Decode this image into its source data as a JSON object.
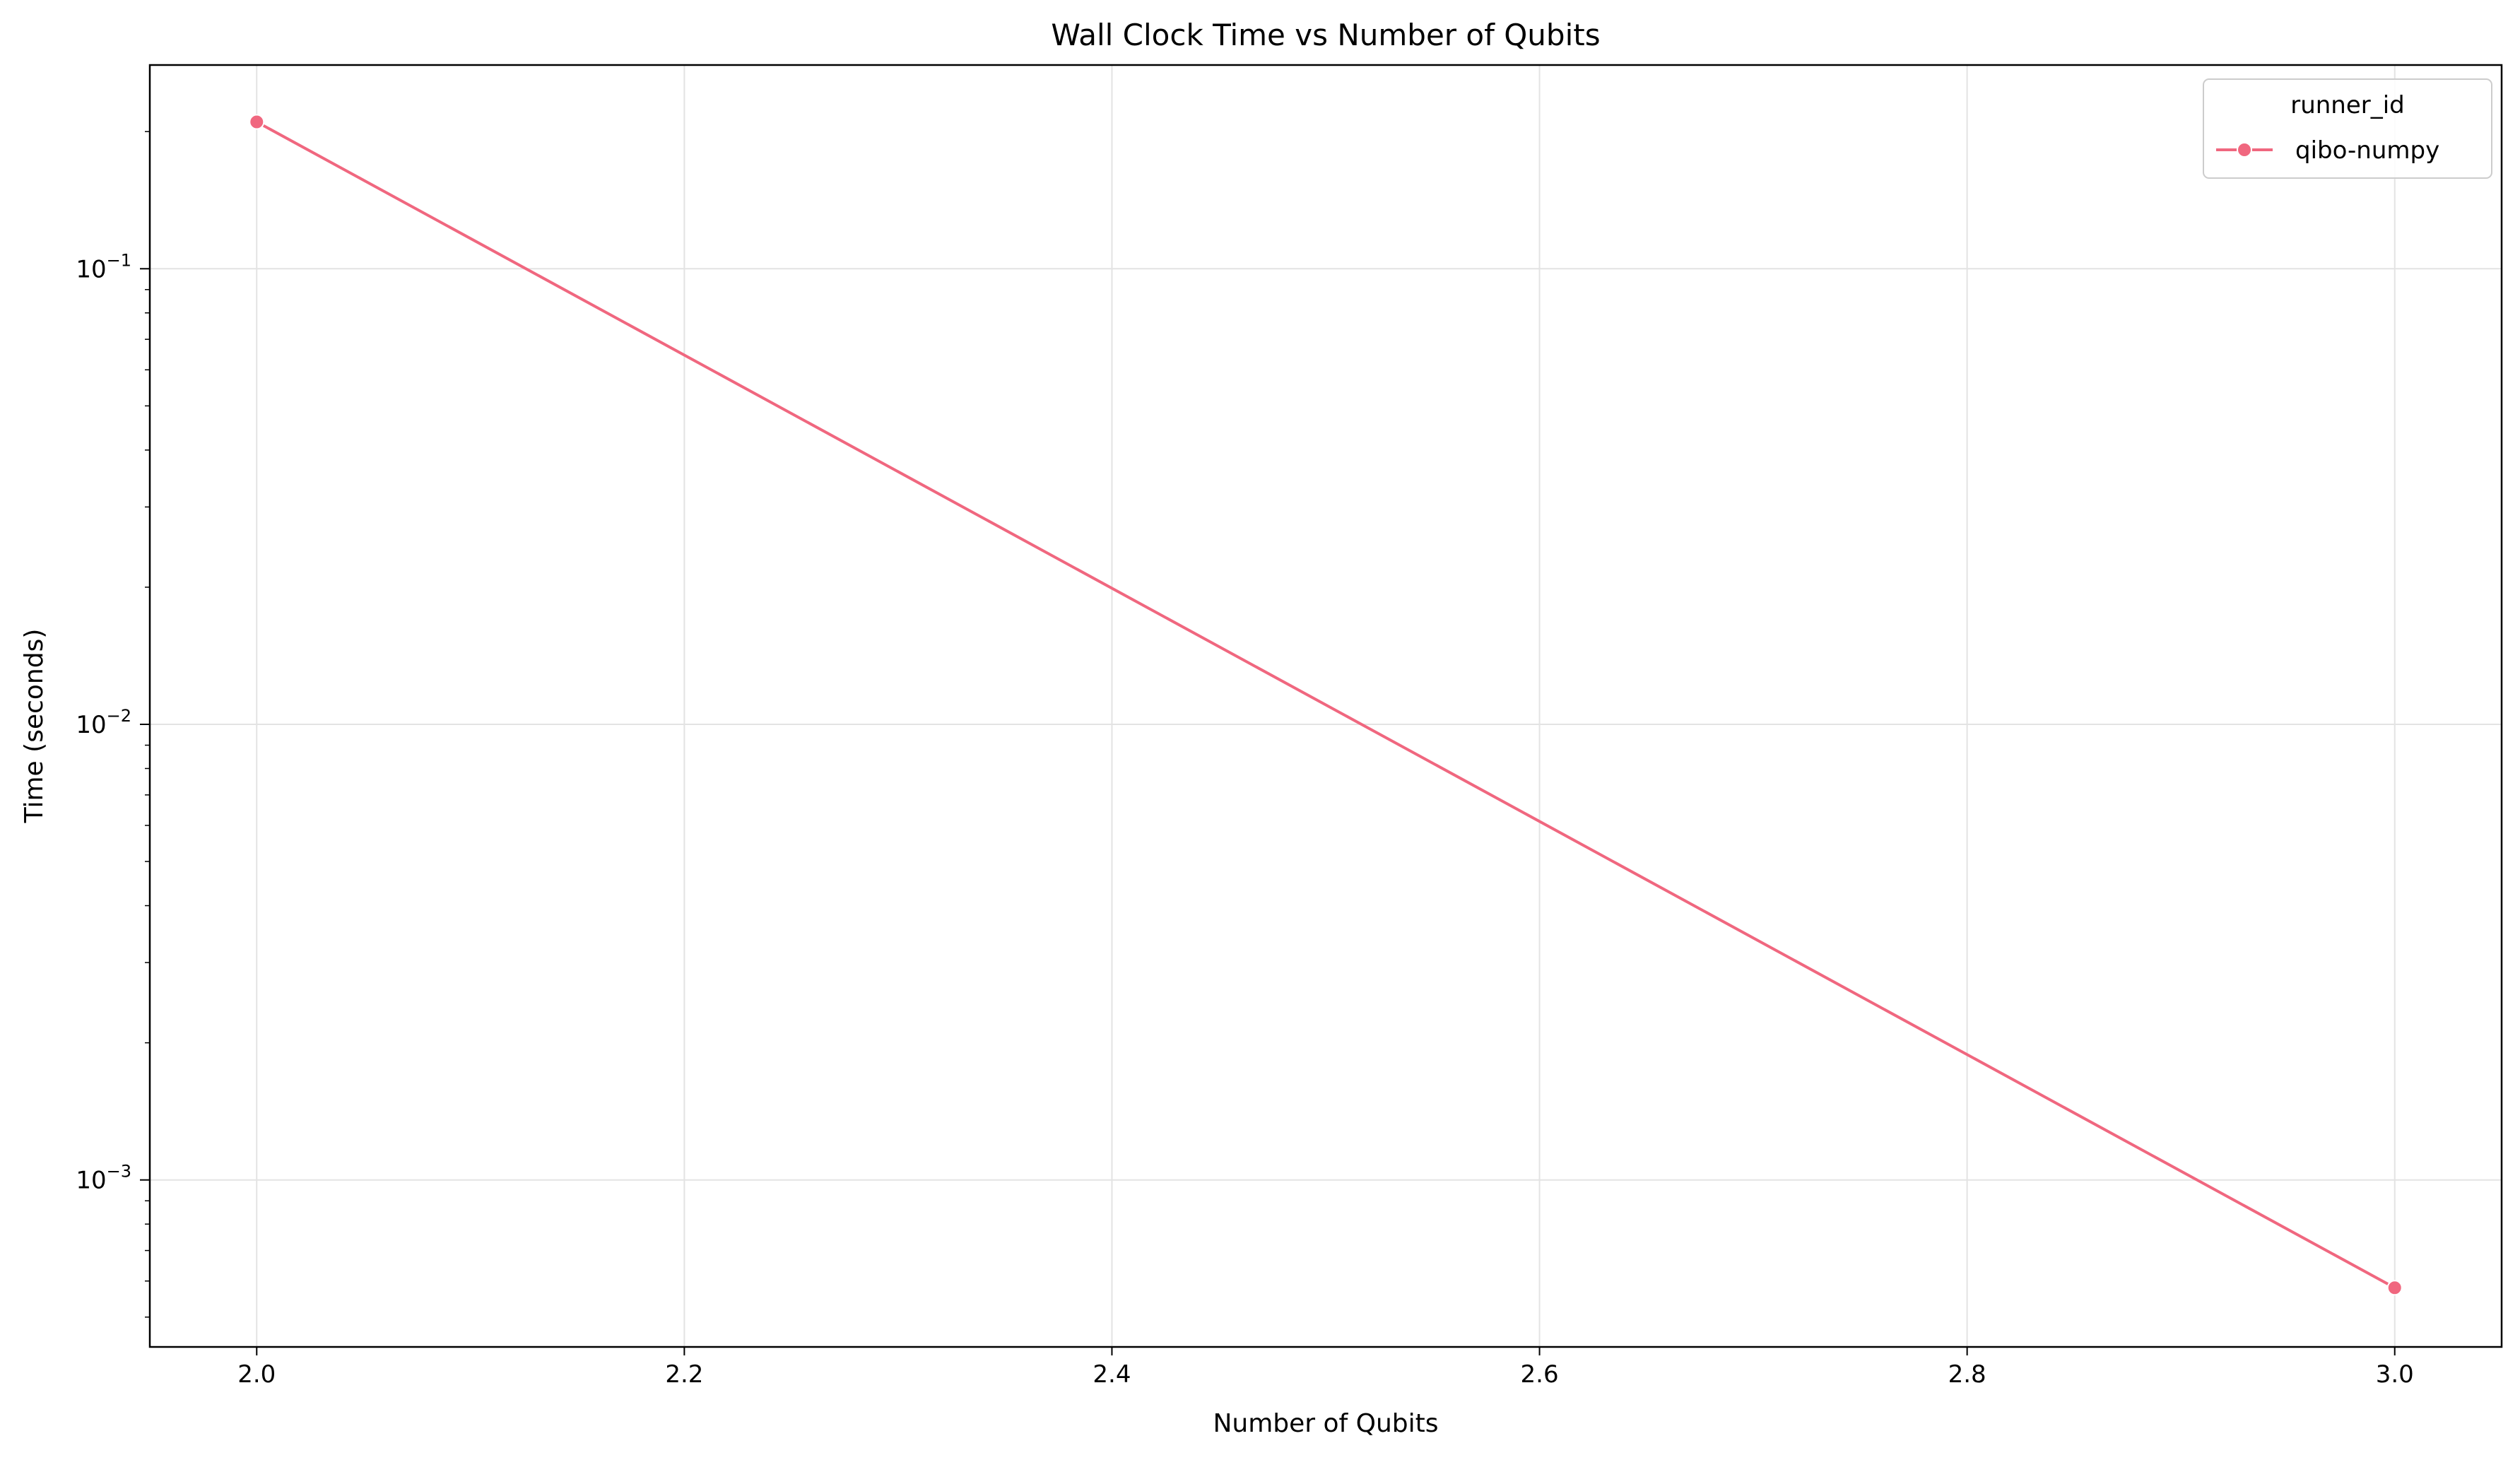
{
  "chart_data": {
    "type": "line",
    "title": "Wall Clock Time vs Number of Qubits",
    "xlabel": "Number of Qubits",
    "ylabel": "Time (seconds)",
    "xscale": "linear",
    "yscale": "log",
    "xlim": [
      1.95,
      3.05
    ],
    "ylim": [
      0.00043,
      0.28
    ],
    "xticks": [
      2.0,
      2.2,
      2.4,
      2.6,
      2.8,
      3.0
    ],
    "xtick_labels": [
      "2.0",
      "2.2",
      "2.4",
      "2.6",
      "2.8",
      "3.0"
    ],
    "yticks_major": [
      {
        "value": 0.1,
        "base": "10",
        "exp": "−1"
      },
      {
        "value": 0.01,
        "base": "10",
        "exp": "−2"
      },
      {
        "value": 0.001,
        "base": "10",
        "exp": "−3"
      }
    ],
    "grid": true,
    "legend": {
      "title": "runner_id",
      "placement": "top-right"
    },
    "series": [
      {
        "name": "qibo-numpy",
        "color": "#f0677f",
        "marker": "circle",
        "x": [
          2,
          3
        ],
        "y": [
          0.21,
          0.00058
        ]
      }
    ]
  }
}
